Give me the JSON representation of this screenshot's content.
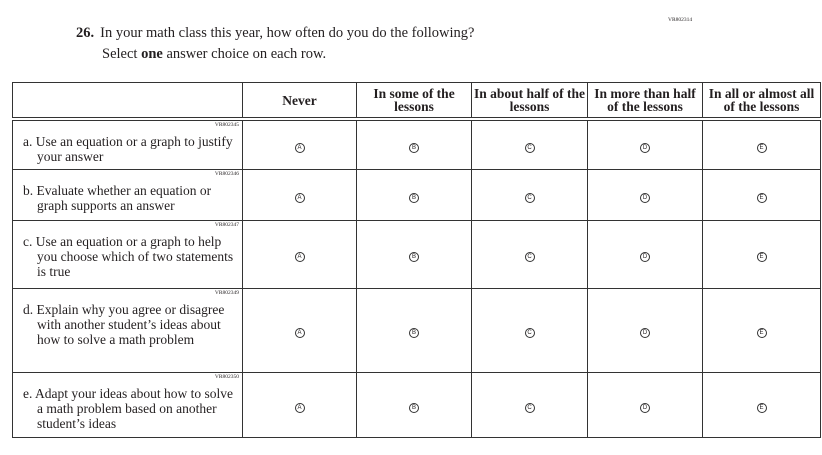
{
  "question": {
    "code": "VR802314",
    "number": "26.",
    "text": "In your math class this year, how often do you do the following?",
    "instruction_pre": "Select ",
    "instruction_bold": "one",
    "instruction_post": " answer choice on each row."
  },
  "columns": [
    "Never",
    "In some of the lessons",
    "In about half of the lessons",
    "In more than half of the lessons",
    "In all or almost all of the lessons"
  ],
  "choices": [
    "A",
    "B",
    "C",
    "D",
    "E"
  ],
  "rows": [
    {
      "code": "VR802345",
      "label": "a. Use an equation or a graph to justify your answer"
    },
    {
      "code": "VR802346",
      "label": "b. Evaluate whether an equation or graph supports an answer"
    },
    {
      "code": "VR802347",
      "label": "c. Use an equation or a graph to help you choose which of two statements is true"
    },
    {
      "code": "VR802349",
      "label": "d. Explain why you agree or disagree with another student’s ideas about how to solve a math problem"
    },
    {
      "code": "VR802350",
      "label": "e. Adapt your ideas about how to solve a math problem based on another student’s ideas"
    }
  ]
}
